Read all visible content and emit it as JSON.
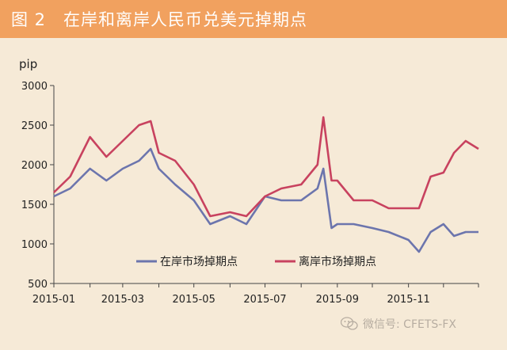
{
  "header": {
    "figure_number": "图 2",
    "title": "在岸和离岸人民币兑美元掉期点"
  },
  "watermark": {
    "text": "微信号: CFETS-FX"
  },
  "colors": {
    "onshore": "#6c75ad",
    "offshore": "#c8425f",
    "header_bg": "#f1a15f",
    "page_bg": "#f6ead7"
  },
  "chart_data": {
    "type": "line",
    "ylabel": "pip",
    "ylim": [
      500,
      3000
    ],
    "yticks": [
      "500",
      "1000",
      "1500",
      "2000",
      "2500",
      "3000"
    ],
    "xticks": [
      "2015-01",
      "2015-03",
      "2015-05",
      "2015-07",
      "2015-09",
      "2015-11"
    ],
    "grid": false,
    "legend_position": "bottom-center",
    "x": [
      "2015-01-01",
      "2015-01-15",
      "2015-02-01",
      "2015-02-15",
      "2015-03-01",
      "2015-03-15",
      "2015-03-25",
      "2015-04-01",
      "2015-04-15",
      "2015-05-01",
      "2015-05-15",
      "2015-06-01",
      "2015-06-15",
      "2015-07-01",
      "2015-07-15",
      "2015-08-01",
      "2015-08-15",
      "2015-08-20",
      "2015-08-27",
      "2015-09-01",
      "2015-09-15",
      "2015-10-01",
      "2015-10-15",
      "2015-11-01",
      "2015-11-10",
      "2015-11-20",
      "2015-12-01",
      "2015-12-10",
      "2015-12-20",
      "2015-12-31"
    ],
    "series": [
      {
        "name": "在岸市场掉期点",
        "values": [
          1600,
          1700,
          1950,
          1800,
          1950,
          2050,
          2200,
          1950,
          1750,
          1550,
          1250,
          1350,
          1250,
          1600,
          1550,
          1550,
          1700,
          1950,
          1200,
          1250,
          1250,
          1200,
          1150,
          1050,
          900,
          1150,
          1250,
          1100,
          1150,
          1150
        ]
      },
      {
        "name": "离岸市场掉期点",
        "values": [
          1650,
          1850,
          2350,
          2100,
          2300,
          2500,
          2550,
          2150,
          2050,
          1750,
          1350,
          1400,
          1350,
          1600,
          1700,
          1750,
          2000,
          2600,
          1800,
          1800,
          1550,
          1550,
          1450,
          1450,
          1450,
          1850,
          1900,
          2150,
          2300,
          2200
        ]
      }
    ]
  }
}
